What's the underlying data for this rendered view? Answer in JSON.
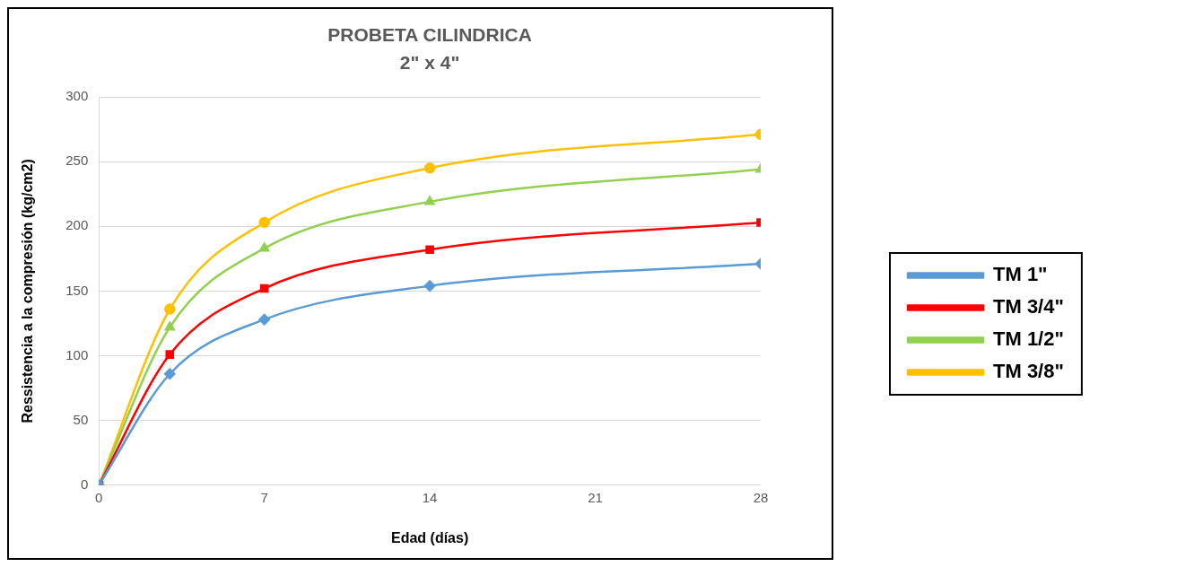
{
  "chart_data": {
    "type": "line",
    "title": "PROBETA CILINDRICA",
    "subtitle": "2\" x 4\"",
    "xlabel": "Edad (días)",
    "ylabel": "Ressistencia a la compresión (kg/cm2)",
    "x": [
      0,
      3,
      7,
      14,
      28
    ],
    "series": [
      {
        "name": "TM 1\"",
        "color": "#5b9bd5",
        "marker": "diamond",
        "values": [
          0,
          86,
          128,
          154,
          171
        ]
      },
      {
        "name": "TM 3/4\"",
        "color": "#ff0000",
        "marker": "square",
        "values": [
          0,
          101,
          152,
          182,
          203
        ]
      },
      {
        "name": "TM 1/2\"",
        "color": "#92d050",
        "marker": "triangle",
        "values": [
          0,
          122,
          183,
          219,
          244
        ]
      },
      {
        "name": "TM 3/8\"",
        "color": "#ffc000",
        "marker": "circle",
        "values": [
          0,
          136,
          203,
          245,
          271
        ]
      }
    ],
    "xlim": [
      0,
      28
    ],
    "xticks": [
      0,
      7,
      14,
      21,
      28
    ],
    "ylim": [
      0,
      300
    ],
    "yticks": [
      0,
      50,
      100,
      150,
      200,
      250,
      300
    ],
    "grid": "y",
    "legend": "right"
  }
}
